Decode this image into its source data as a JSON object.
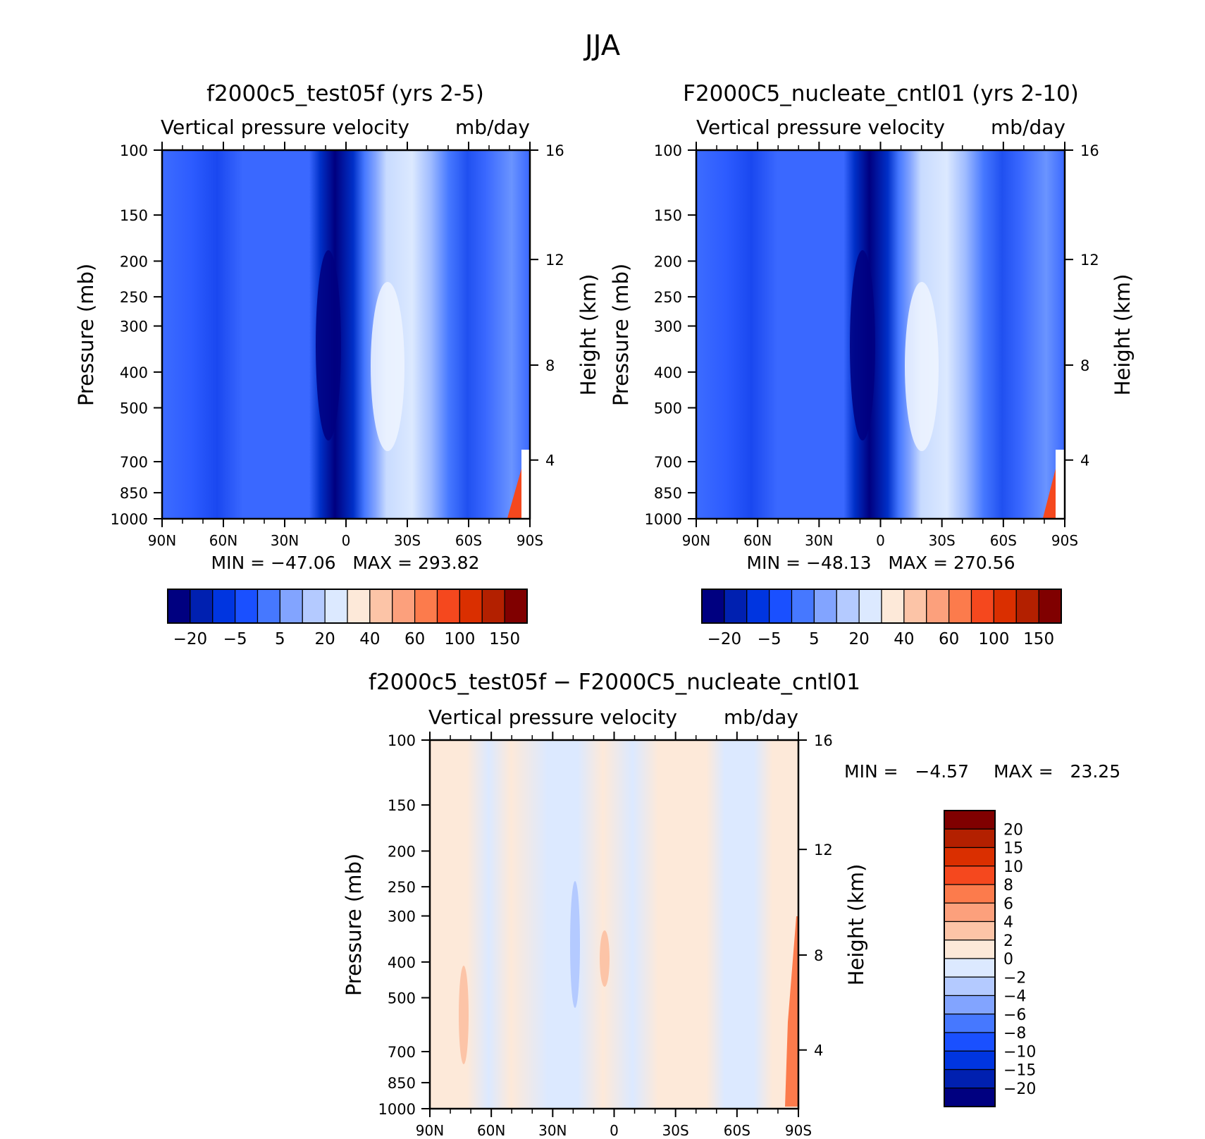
{
  "main_title": "JJA",
  "chart_data": [
    {
      "type": "heatmap",
      "title": "f2000c5_test05f (yrs 2-5)",
      "subtitle_left": "Vertical pressure velocity",
      "subtitle_right": "mb/day",
      "ylabel": "Pressure (mb)",
      "ylabel_right": "Height (km)",
      "x_ticks": [
        "90N",
        "60N",
        "30N",
        "0",
        "30S",
        "60S",
        "90S"
      ],
      "y_ticks": [
        "100",
        "150",
        "200",
        "250",
        "300",
        "400",
        "500",
        "700",
        "850",
        "1000"
      ],
      "y_ticks_right": [
        "16",
        "12",
        "8",
        "4"
      ],
      "ylim": [
        1000,
        100
      ],
      "y_scale": "log",
      "stats": "MIN = −47.06   MAX = 293.82",
      "colorbar_labels": [
        "−20",
        "−5",
        "5",
        "20",
        "40",
        "60",
        "100",
        "150"
      ],
      "colorbar_colors": [
        "#000080",
        "#0020b0",
        "#0035e0",
        "#1a50ff",
        "#4678ff",
        "#82a4ff",
        "#b4caff",
        "#dce9ff",
        "#fde9d9",
        "#fcc4a7",
        "#fca07c",
        "#fc7b4c",
        "#f5481e",
        "#da2f00",
        "#b32000",
        "#800000"
      ]
    },
    {
      "type": "heatmap",
      "title": "F2000C5_nucleate_cntl01 (yrs 2-10)",
      "subtitle_left": "Vertical pressure velocity",
      "subtitle_right": "mb/day",
      "ylabel": "Pressure (mb)",
      "ylabel_right": "Height (km)",
      "x_ticks": [
        "90N",
        "60N",
        "30N",
        "0",
        "30S",
        "60S",
        "90S"
      ],
      "y_ticks": [
        "100",
        "150",
        "200",
        "250",
        "300",
        "400",
        "500",
        "700",
        "850",
        "1000"
      ],
      "y_ticks_right": [
        "16",
        "12",
        "8",
        "4"
      ],
      "ylim": [
        1000,
        100
      ],
      "y_scale": "log",
      "stats": "MIN = −48.13   MAX = 270.56",
      "colorbar_labels": [
        "−20",
        "−5",
        "5",
        "20",
        "40",
        "60",
        "100",
        "150"
      ],
      "colorbar_colors": [
        "#000080",
        "#0020b0",
        "#0035e0",
        "#1a50ff",
        "#4678ff",
        "#82a4ff",
        "#b4caff",
        "#dce9ff",
        "#fde9d9",
        "#fcc4a7",
        "#fca07c",
        "#fc7b4c",
        "#f5481e",
        "#da2f00",
        "#b32000",
        "#800000"
      ]
    },
    {
      "type": "heatmap",
      "title": "f2000c5_test05f − F2000C5_nucleate_cntl01",
      "subtitle_left": "Vertical pressure velocity",
      "subtitle_right": "mb/day",
      "ylabel": "Pressure (mb)",
      "ylabel_right": "Height (km)",
      "x_ticks": [
        "90N",
        "60N",
        "30N",
        "0",
        "30S",
        "60S",
        "90S"
      ],
      "y_ticks": [
        "100",
        "150",
        "200",
        "250",
        "300",
        "400",
        "500",
        "700",
        "850",
        "1000"
      ],
      "y_ticks_right": [
        "16",
        "12",
        "8",
        "4"
      ],
      "ylim": [
        1000,
        100
      ],
      "y_scale": "log",
      "stats_min": "MIN =   −4.57",
      "stats_max": "MAX =   23.25",
      "colorbar_labels": [
        "20",
        "15",
        "10",
        "8",
        "6",
        "4",
        "2",
        "0",
        "−2",
        "−4",
        "−6",
        "−8",
        "−10",
        "−15",
        "−20"
      ],
      "colorbar_colors": [
        "#800000",
        "#b32000",
        "#da2f00",
        "#f5481e",
        "#fc7b4c",
        "#fca07c",
        "#fcc4a7",
        "#fde9d9",
        "#dce9ff",
        "#b4caff",
        "#82a4ff",
        "#4678ff",
        "#1a50ff",
        "#0035e0",
        "#0020b0",
        "#000080"
      ]
    }
  ]
}
